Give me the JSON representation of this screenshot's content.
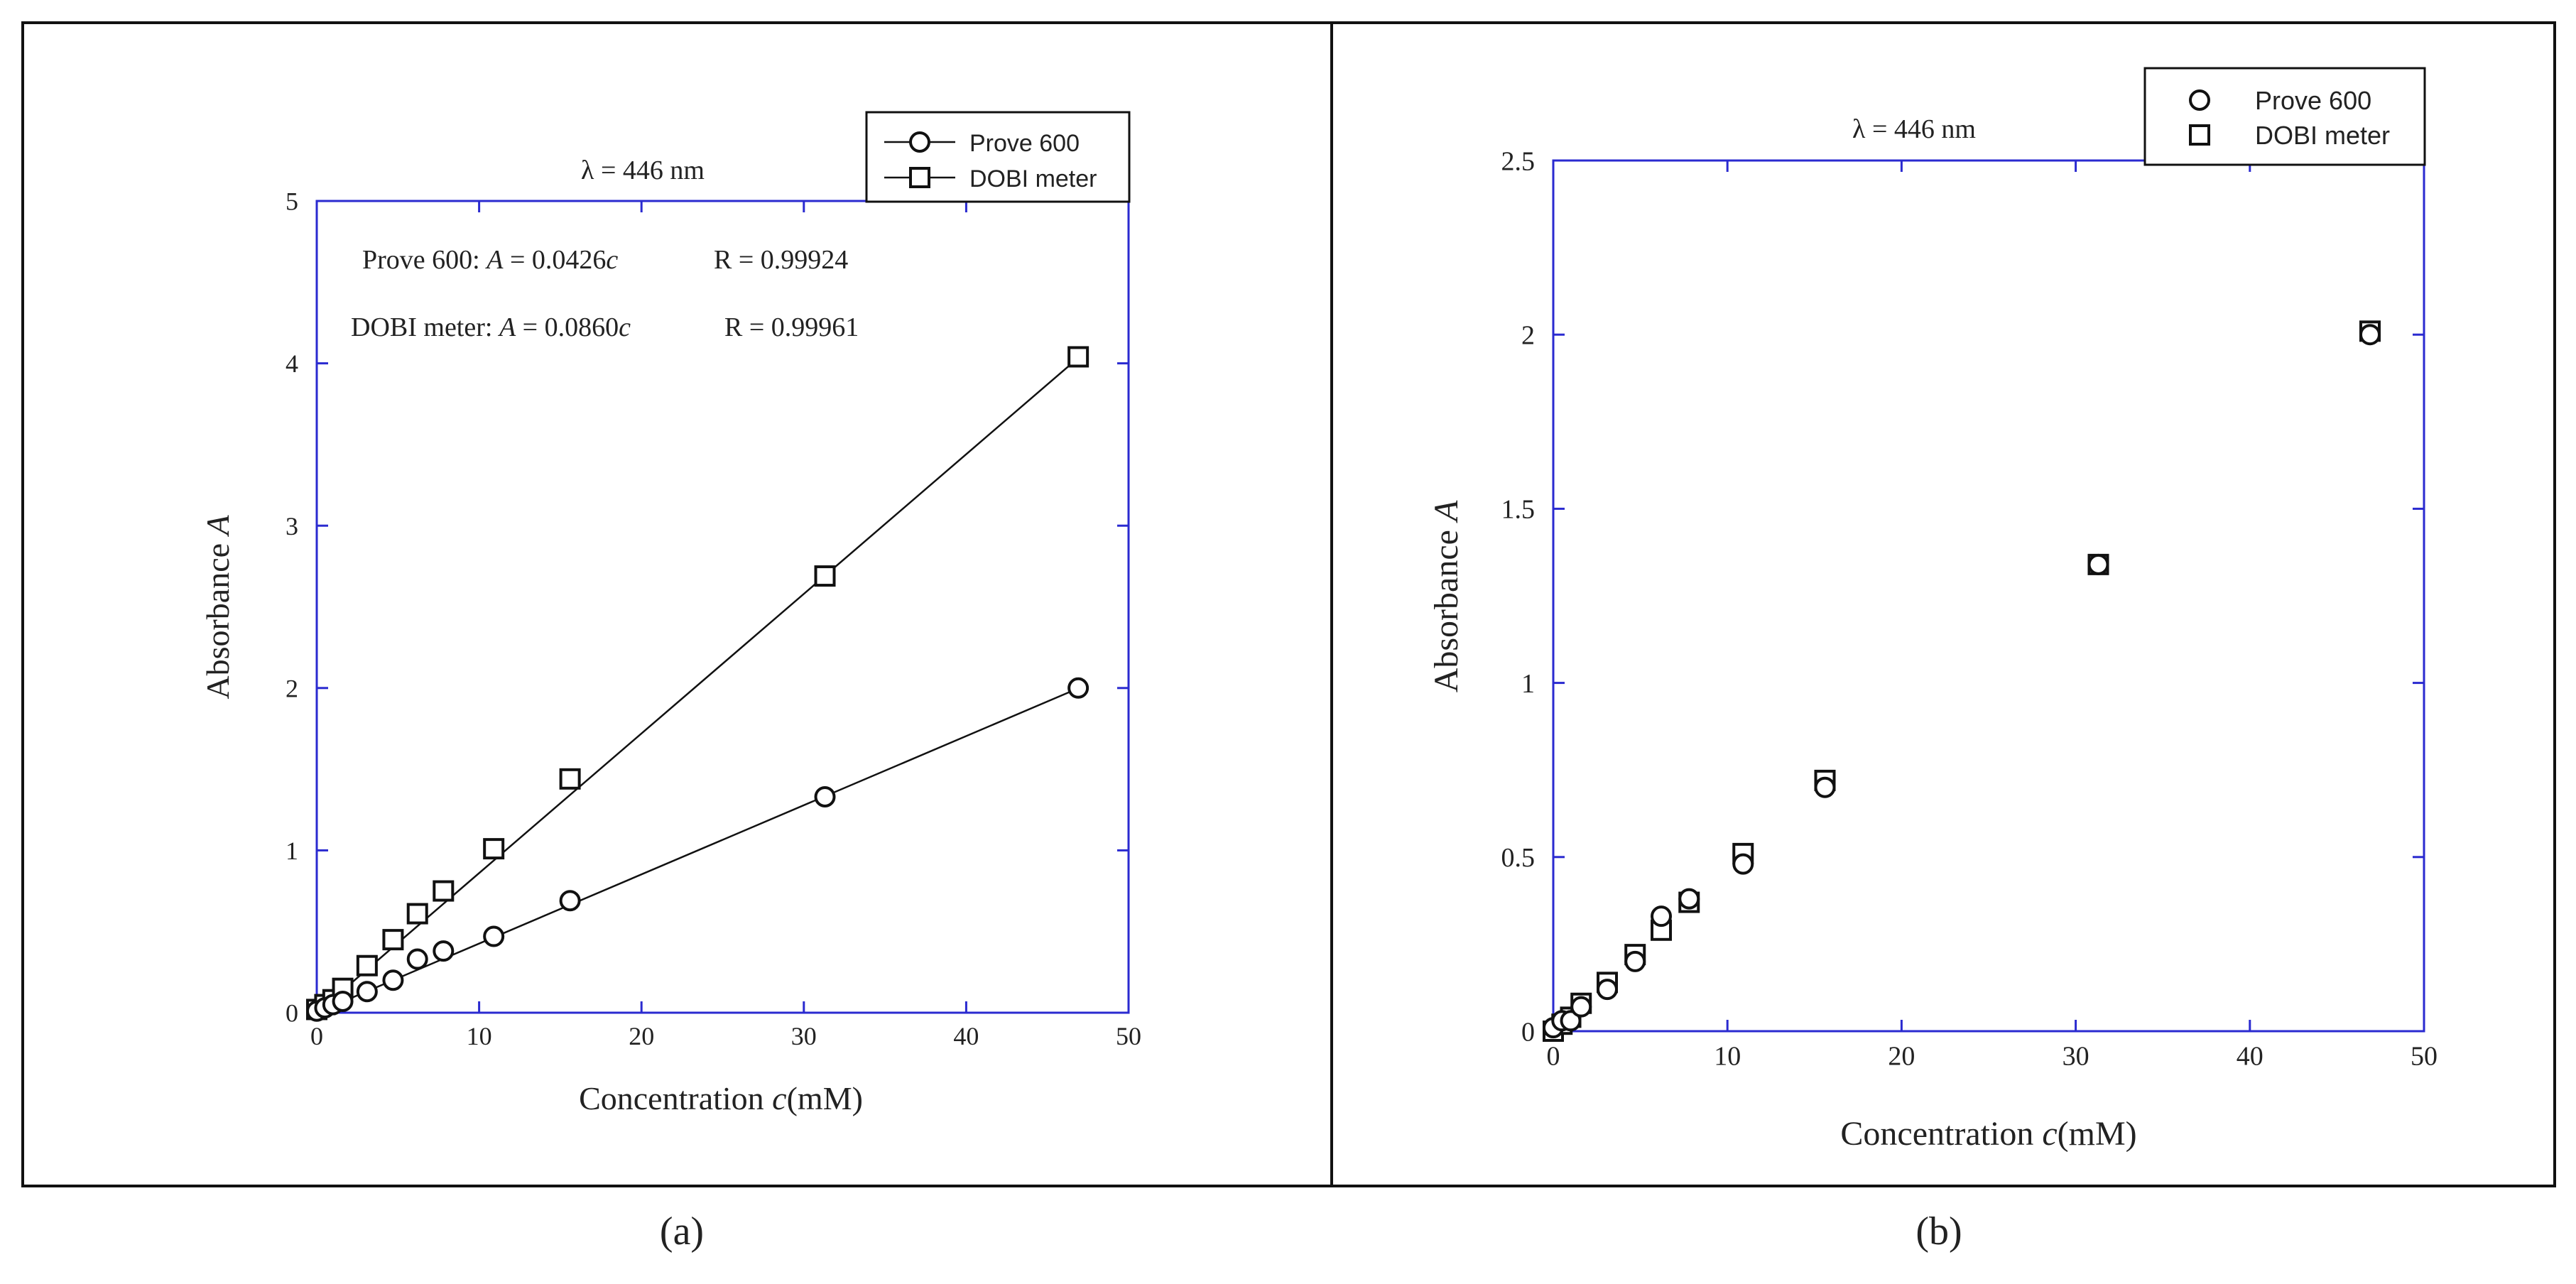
{
  "panels": [
    {
      "caption": "(a)",
      "title": "λ = 446 nm",
      "fit_text": [
        {
          "lead": "Prove 600: ",
          "var1": "A",
          "eq": " = 0.0426",
          "var2": "c",
          "r": "R = 0.99924"
        },
        {
          "lead": "DOBI meter: ",
          "var1": "A",
          "eq": " = 0.0860",
          "var2": "c",
          "r": "R = 0.99961"
        }
      ],
      "xlabel": {
        "text": "Concentration ",
        "var": "c",
        "unit": "(mM)"
      },
      "ylabel": {
        "text": "Absorbance ",
        "var": "A"
      }
    },
    {
      "caption": "(b)",
      "title": "λ = 446 nm",
      "fit_text": [],
      "xlabel": {
        "text": "Concentration ",
        "var": "c",
        "unit": "(mM)"
      },
      "ylabel": {
        "text": "Absorbance ",
        "var": "A"
      }
    }
  ],
  "chart_data": [
    {
      "type": "scatter",
      "title": "λ = 446 nm",
      "xlabel": "Concentration c(mM)",
      "ylabel": "Absorbance A",
      "xlim": [
        0,
        50
      ],
      "ylim": [
        0,
        5
      ],
      "xticks": [
        0,
        10,
        20,
        30,
        40,
        50
      ],
      "yticks": [
        0,
        1,
        2,
        3,
        4,
        5
      ],
      "legend": "top-right",
      "grid": false,
      "fit_lines": true,
      "series": [
        {
          "name": "Prove 600",
          "marker": "circle",
          "slope": 0.0426,
          "x": [
            0,
            0.5,
            1.0,
            1.6,
            3.1,
            4.7,
            6.2,
            7.8,
            10.9,
            15.6,
            31.3,
            46.9
          ],
          "y": [
            0.01,
            0.03,
            0.05,
            0.07,
            0.13,
            0.2,
            0.33,
            0.38,
            0.47,
            0.69,
            1.33,
            2.0
          ]
        },
        {
          "name": "DOBI meter",
          "marker": "square",
          "slope": 0.086,
          "x": [
            0,
            0.5,
            1.0,
            1.6,
            3.1,
            4.7,
            6.2,
            7.8,
            10.9,
            15.6,
            31.3,
            46.9
          ],
          "y": [
            0.02,
            0.05,
            0.08,
            0.15,
            0.29,
            0.45,
            0.61,
            0.75,
            1.01,
            1.44,
            2.69,
            4.04
          ]
        }
      ]
    },
    {
      "type": "scatter",
      "title": "λ = 446 nm",
      "xlabel": "Concentration c(mM)",
      "ylabel": "Absorbance A",
      "xlim": [
        0,
        50
      ],
      "ylim": [
        0,
        2.5
      ],
      "xticks": [
        0,
        10,
        20,
        30,
        40,
        50
      ],
      "yticks": [
        0,
        0.5,
        1,
        1.5,
        2,
        2.5
      ],
      "legend": "top-right",
      "grid": false,
      "fit_lines": false,
      "series": [
        {
          "name": "Prove 600",
          "marker": "circle",
          "x": [
            0,
            0.5,
            1.0,
            1.6,
            3.1,
            4.7,
            6.2,
            7.8,
            10.9,
            15.6,
            31.3,
            46.9
          ],
          "y": [
            0.01,
            0.03,
            0.03,
            0.07,
            0.12,
            0.2,
            0.33,
            0.38,
            0.48,
            0.7,
            1.34,
            2.0
          ]
        },
        {
          "name": "DOBI meter",
          "marker": "square",
          "x": [
            0,
            0.5,
            1.0,
            1.6,
            3.1,
            4.7,
            6.2,
            7.8,
            10.9,
            15.6,
            31.3,
            46.9
          ],
          "y": [
            0.0,
            0.02,
            0.04,
            0.08,
            0.14,
            0.22,
            0.29,
            0.37,
            0.51,
            0.72,
            1.34,
            2.01
          ]
        }
      ]
    }
  ]
}
